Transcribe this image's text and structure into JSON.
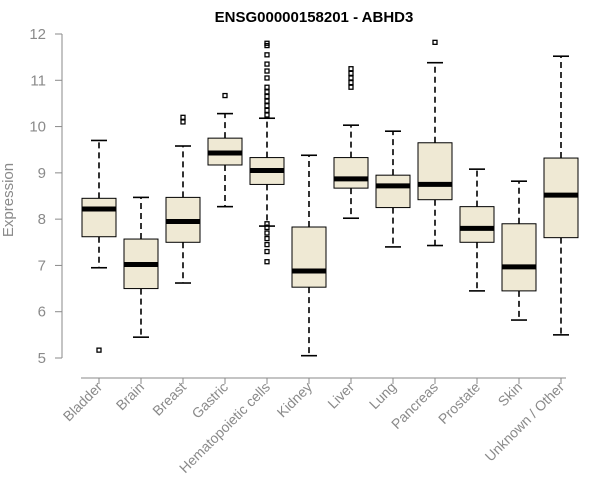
{
  "chart_data": {
    "type": "box",
    "title": "ENSG00000158201 - ABHD3",
    "xlabel": "",
    "ylabel": "Expression",
    "ylim": [
      5,
      12
    ],
    "yticks": [
      5,
      6,
      7,
      8,
      9,
      10,
      11,
      12
    ],
    "categories": [
      "Bladder",
      "Brain",
      "Breast",
      "Gastric",
      "Hematopoietic cells",
      "Kidney",
      "Liver",
      "Lung",
      "Pancreas",
      "Prostate",
      "Skin",
      "Unknown / Other"
    ],
    "boxes": [
      {
        "min": 6.95,
        "q1": 7.62,
        "median": 8.22,
        "q3": 8.45,
        "max": 9.7,
        "outliers": [
          5.17
        ]
      },
      {
        "min": 5.45,
        "q1": 6.5,
        "median": 7.02,
        "q3": 7.57,
        "max": 8.47,
        "outliers": []
      },
      {
        "min": 6.62,
        "q1": 7.5,
        "median": 7.95,
        "q3": 8.47,
        "max": 9.58,
        "outliers": [
          10.1,
          10.2
        ]
      },
      {
        "min": 8.27,
        "q1": 9.17,
        "median": 9.43,
        "q3": 9.75,
        "max": 10.28,
        "outliers": [
          10.67
        ]
      },
      {
        "min": 7.85,
        "q1": 8.75,
        "median": 9.05,
        "q3": 9.33,
        "max": 10.18,
        "outliers": [
          7.08,
          7.3,
          7.45,
          7.58,
          7.7,
          7.82,
          7.9,
          10.25,
          10.35,
          10.45,
          10.55,
          10.65,
          10.75,
          10.85,
          11.05,
          11.2,
          11.35,
          11.55,
          11.75,
          11.8
        ]
      },
      {
        "min": 5.05,
        "q1": 6.53,
        "median": 6.88,
        "q3": 7.83,
        "max": 9.38,
        "outliers": []
      },
      {
        "min": 8.02,
        "q1": 8.67,
        "median": 8.87,
        "q3": 9.33,
        "max": 10.03,
        "outliers": [
          10.85,
          10.95,
          11.05,
          11.15,
          11.25
        ]
      },
      {
        "min": 7.4,
        "q1": 8.25,
        "median": 8.72,
        "q3": 8.95,
        "max": 9.9,
        "outliers": []
      },
      {
        "min": 7.43,
        "q1": 8.42,
        "median": 8.75,
        "q3": 9.65,
        "max": 11.38,
        "outliers": [
          11.82
        ]
      },
      {
        "min": 6.45,
        "q1": 7.5,
        "median": 7.8,
        "q3": 8.27,
        "max": 9.08,
        "outliers": []
      },
      {
        "min": 5.82,
        "q1": 6.45,
        "median": 6.97,
        "q3": 7.9,
        "max": 8.82,
        "outliers": []
      },
      {
        "min": 5.5,
        "q1": 7.6,
        "median": 8.52,
        "q3": 9.32,
        "max": 11.52,
        "outliers": []
      }
    ],
    "colors": {
      "box_fill": "#efe9d4",
      "axis": "#8a8a8a",
      "line": "#000000"
    }
  }
}
